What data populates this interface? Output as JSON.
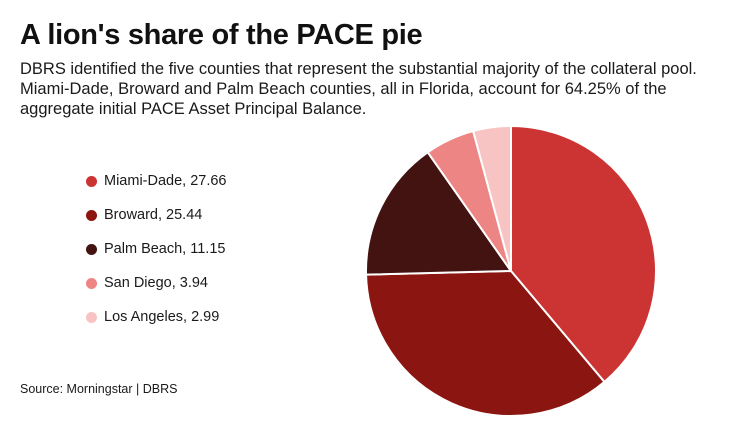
{
  "header": {
    "title": "A lion's share of the PACE pie",
    "subtitle": "DBRS identified the five counties that represent the substantial majority of the collateral pool. Miami-Dade, Broward and Palm Beach counties, all in Florida, account for 64.25% of the aggregate initial PACE Asset Principal Balance."
  },
  "footer": {
    "source": "Source: Morningstar | DBRS"
  },
  "chart_data": {
    "type": "pie",
    "title": "A lion's share of the PACE pie",
    "legend_position": "left",
    "slices": [
      {
        "label": "Miami-Dade",
        "value": 27.66,
        "color": "#cc3333",
        "legend_text": "Miami-Dade, 27.66"
      },
      {
        "label": "Broward",
        "value": 25.44,
        "color": "#8b1510",
        "legend_text": "Broward, 25.44"
      },
      {
        "label": "Palm Beach",
        "value": 11.15,
        "color": "#421310",
        "legend_text": "Palm Beach, 11.15"
      },
      {
        "label": "San Diego",
        "value": 3.94,
        "color": "#ee8585",
        "legend_text": "San Diego, 3.94"
      },
      {
        "label": "Los Angeles",
        "value": 2.99,
        "color": "#f7c3c3",
        "legend_text": "Los Angeles, 2.99"
      }
    ]
  }
}
